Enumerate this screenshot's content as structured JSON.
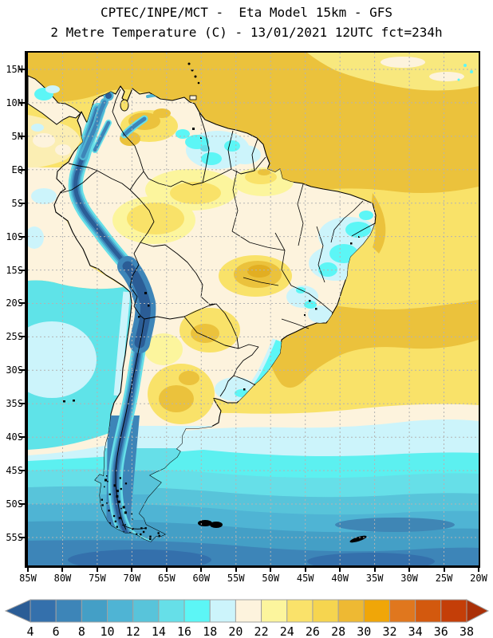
{
  "header": {
    "line1": "CPTEC/INPE/MCT -  Eta Model 15km - GFS",
    "line2": "2 Metre Temperature (C) - 13/01/2021 12UTC fct=234h"
  },
  "map": {
    "lat_labels": [
      "15N",
      "10N",
      "5N",
      "EQ",
      "5S",
      "10S",
      "15S",
      "20S",
      "25S",
      "30S",
      "35S",
      "40S",
      "45S",
      "50S",
      "55S"
    ],
    "lon_labels": [
      "85W",
      "80W",
      "75W",
      "70W",
      "65W",
      "60W",
      "55W",
      "50W",
      "45W",
      "40W",
      "35W",
      "30W",
      "25W",
      "20W"
    ]
  },
  "colorbar": {
    "tick_labels": [
      "4",
      "6",
      "8",
      "10",
      "12",
      "14",
      "16",
      "18",
      "20",
      "22",
      "24",
      "26",
      "28",
      "30",
      "32",
      "34",
      "36",
      "38"
    ],
    "cell_colors": [
      "#3470ac",
      "#3d85b8",
      "#449fc6",
      "#4fb4d4",
      "#58c4da",
      "#66dfe8",
      "#5cf6f6",
      "#ccf4fb",
      "#fdf3dd",
      "#fcf59d",
      "#fae26a",
      "#f6d54f",
      "#eeb933",
      "#f0a608",
      "#e0771e",
      "#d3590e",
      "#c43e08"
    ],
    "arrow_left_color": "#2b5d96",
    "arrow_right_color": "#aa3008",
    "border_color": "#a0a0a0"
  },
  "chart_data": {
    "type": "heatmap",
    "title": "2 Metre Temperature (C)",
    "source": "CPTEC/INPE/MCT",
    "model": "Eta Model 15km - GFS",
    "valid_run": "13/01/2021 12UTC",
    "forecast": "fct=234h",
    "x_axis": {
      "label": "longitude",
      "ticks": [
        "85W",
        "80W",
        "75W",
        "70W",
        "65W",
        "60W",
        "55W",
        "50W",
        "45W",
        "40W",
        "35W",
        "30W",
        "25W",
        "20W"
      ]
    },
    "y_axis": {
      "label": "latitude",
      "ticks": [
        "15N",
        "10N",
        "5N",
        "EQ",
        "5S",
        "10S",
        "15S",
        "20S",
        "25S",
        "30S",
        "35S",
        "40S",
        "45S",
        "50S",
        "55S"
      ]
    },
    "scale_celsius": {
      "levels": [
        4,
        6,
        8,
        10,
        12,
        14,
        16,
        18,
        20,
        22,
        24,
        26,
        28,
        30,
        32,
        34,
        36,
        38
      ],
      "colors": [
        "#3470ac",
        "#3d85b8",
        "#449fc6",
        "#4fb4d4",
        "#58c4da",
        "#66dfe8",
        "#5cf6f6",
        "#ccf4fb",
        "#fdf3dd",
        "#fcf59d",
        "#fae26a",
        "#f6d54f",
        "#eeb933",
        "#f0a608",
        "#e0771e",
        "#d3590e",
        "#c43e08"
      ],
      "below_color": "#2b5d96",
      "above_color": "#aa3008"
    },
    "features": [
      {
        "region": "Caribbean and tropical North Atlantic",
        "temp_c": "26-30"
      },
      {
        "region": "Equatorial Atlantic off Guianas and NE Brazil coast",
        "temp_c": "26-28"
      },
      {
        "region": "Amazon basin interior",
        "temp_c": "20-26"
      },
      {
        "region": "Andes cordillera (Colombia to Tierra del Fuego)",
        "temp_c": "<4-10"
      },
      {
        "region": "Guiana highlands / SE Venezuela",
        "temp_c": "16-20"
      },
      {
        "region": "Northeast Brazil highlands",
        "temp_c": "16-20"
      },
      {
        "region": "Mato Grosso / Bolivia lowlands hot spot",
        "temp_c": "26-30"
      },
      {
        "region": "Chaco and central Argentina hot spot",
        "temp_c": "26-30"
      },
      {
        "region": "Pacific off Peru and northern Chile",
        "temp_c": "16-20"
      },
      {
        "region": "South Atlantic 35S-45S",
        "temp_c": "12-18"
      },
      {
        "region": "Patagonia",
        "temp_c": "8-16"
      },
      {
        "region": "Southern Ocean near 55S",
        "temp_c": "4-8"
      }
    ]
  }
}
